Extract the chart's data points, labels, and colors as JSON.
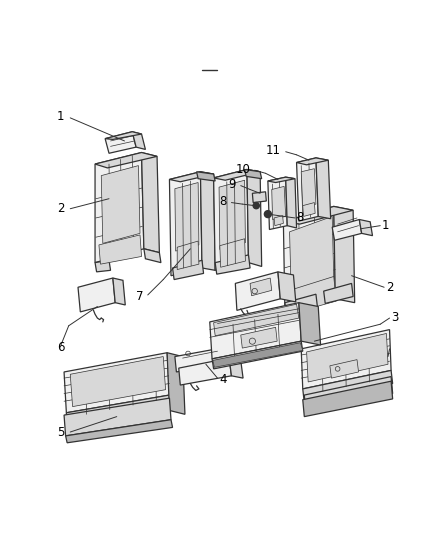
{
  "bg": "#ffffff",
  "fw": 4.38,
  "fh": 5.33,
  "dpi": 100,
  "lc": "#333333",
  "fc_light": "#f0f0f0",
  "fc_mid": "#d8d8d8",
  "fc_dark": "#b8b8b8",
  "fc_darker": "#999999",
  "lw_main": 0.9,
  "lw_detail": 0.5,
  "fs": 8.5
}
